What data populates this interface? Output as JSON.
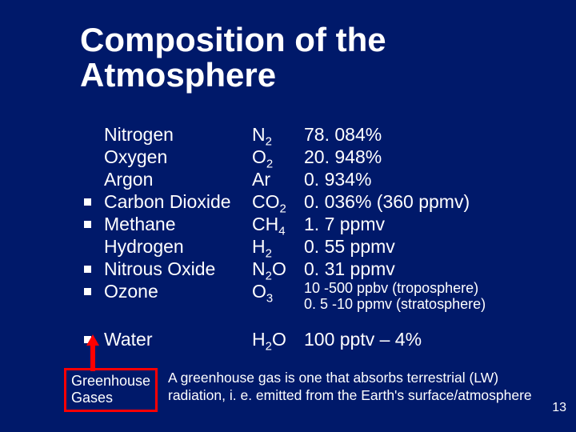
{
  "title_line1": "Composition of the",
  "title_line2": "Atmosphere",
  "rows": [
    {
      "bullet": false,
      "name": "Nitrogen",
      "formula_base": "N",
      "formula_sub": "2",
      "value": "78. 084%"
    },
    {
      "bullet": false,
      "name": "Oxygen",
      "formula_base": "O",
      "formula_sub": "2",
      "value": "20. 948%"
    },
    {
      "bullet": false,
      "name": "Argon",
      "formula_base": "Ar",
      "formula_sub": "",
      "value": "0. 934%"
    },
    {
      "bullet": true,
      "name": "Carbon Dioxide",
      "formula_base": "CO",
      "formula_sub": "2",
      "value": "0. 036% (360 ppmv)"
    },
    {
      "bullet": true,
      "name": "Methane",
      "formula_base": "CH",
      "formula_sub": "4",
      "value": "1. 7 ppmv"
    },
    {
      "bullet": false,
      "name": "Hydrogen",
      "formula_base": "H",
      "formula_sub": "2",
      "value": "0. 55 ppmv"
    },
    {
      "bullet": true,
      "name": "Nitrous Oxide",
      "formula_html": "N<sub>2</sub>O",
      "value": "0. 31 ppmv"
    },
    {
      "bullet": true,
      "name": "Ozone",
      "formula_base": "O",
      "formula_sub": "3",
      "value_line1": "10 -500 ppbv (troposphere)",
      "value_line2": "0. 5 -10 ppmv (stratosphere)",
      "ozone": true
    }
  ],
  "water": {
    "bullet": true,
    "name": "Water",
    "formula_html": "H<sub>2</sub>O",
    "value": "100 pptv – 4%"
  },
  "gg_box_line1": "Greenhouse",
  "gg_box_line2": "Gases",
  "definition_line1": "A greenhouse gas is one that absorbs terrestrial (LW)",
  "definition_line2": "radiation, i. e. emitted from the Earth's surface/atmosphere",
  "page_number": "13",
  "colors": {
    "bg": "#00196a",
    "text": "#ffffff",
    "accent": "#ff0000"
  }
}
